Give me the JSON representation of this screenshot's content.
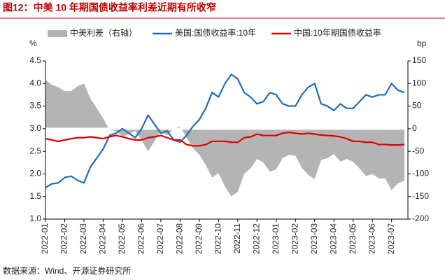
{
  "chart_data": {
    "type": "line",
    "title": "图12：中美 10 年期国债收益率利差近期有所收窄",
    "source": "数据来源：Wind、开源证券研究所",
    "y_label": "%",
    "y2_label": "bp",
    "categories": [
      "2022-01",
      null,
      null,
      "2022-02",
      null,
      null,
      "2022-03",
      null,
      null,
      "2022-04",
      null,
      null,
      "2022-05",
      null,
      null,
      "2022-06",
      null,
      null,
      "2022-07",
      null,
      null,
      "2022-08",
      null,
      null,
      "2022-09",
      null,
      null,
      "2022-10",
      null,
      null,
      "2022-11",
      null,
      null,
      "2022-12",
      null,
      null,
      "2023-01",
      null,
      null,
      "2023-02",
      null,
      null,
      "2023-03",
      null,
      null,
      "2023-04",
      null,
      null,
      "2023-05",
      null,
      null,
      "2023-06",
      null,
      null,
      "2023-07",
      null,
      null
    ],
    "series": [
      {
        "name": "中美利差（右轴）",
        "type": "area",
        "axis": "y2",
        "color": "#b4b4b4",
        "values": [
          108,
          97,
          92,
          83,
          83,
          94,
          100,
          67,
          45,
          23,
          -3,
          -5,
          -18,
          -12,
          -5,
          -25,
          -50,
          -28,
          -5,
          -15,
          0,
          5,
          -20,
          -43,
          -58,
          -80,
          -108,
          -98,
          -128,
          -150,
          -140,
          -100,
          -88,
          -67,
          -75,
          -95,
          -90,
          -65,
          -58,
          -60,
          -87,
          -102,
          -112,
          -69,
          -65,
          -56,
          -73,
          -67,
          -73,
          -88,
          -105,
          -100,
          -110,
          -110,
          -136,
          -121,
          -115
        ]
      },
      {
        "name": "美国:国债收益率:10年",
        "type": "line",
        "color": "#1f6db5",
        "values": [
          1.7,
          1.78,
          1.8,
          1.92,
          1.95,
          1.86,
          1.8,
          2.15,
          2.35,
          2.55,
          2.85,
          2.9,
          3.0,
          2.9,
          2.8,
          3.0,
          3.3,
          3.1,
          2.9,
          2.95,
          2.75,
          2.7,
          2.85,
          3.05,
          3.2,
          3.45,
          3.8,
          3.7,
          4.0,
          4.2,
          4.1,
          3.8,
          3.7,
          3.55,
          3.6,
          3.8,
          3.75,
          3.55,
          3.5,
          3.5,
          3.75,
          3.92,
          4.0,
          3.55,
          3.5,
          3.4,
          3.55,
          3.45,
          3.45,
          3.6,
          3.75,
          3.7,
          3.75,
          3.75,
          4.0,
          3.85,
          3.8
        ]
      },
      {
        "name": "中国:10年期国债收益率",
        "type": "line",
        "color": "#e00000",
        "values": [
          2.78,
          2.75,
          2.72,
          2.75,
          2.78,
          2.8,
          2.8,
          2.82,
          2.8,
          2.78,
          2.82,
          2.85,
          2.82,
          2.78,
          2.75,
          2.75,
          2.8,
          2.82,
          2.85,
          2.8,
          2.75,
          2.75,
          2.65,
          2.62,
          2.62,
          2.65,
          2.72,
          2.72,
          2.72,
          2.7,
          2.7,
          2.8,
          2.82,
          2.88,
          2.85,
          2.85,
          2.85,
          2.9,
          2.92,
          2.9,
          2.88,
          2.9,
          2.88,
          2.86,
          2.85,
          2.84,
          2.82,
          2.78,
          2.72,
          2.72,
          2.7,
          2.7,
          2.65,
          2.65,
          2.64,
          2.64,
          2.65
        ]
      }
    ],
    "ylim": [
      1.0,
      4.5
    ],
    "yticks": [
      {
        "value": 1.0,
        "label": "1.0"
      },
      {
        "value": 1.5,
        "label": "1.5"
      },
      {
        "value": 2.0,
        "label": "2.0"
      },
      {
        "value": 2.5,
        "label": "2.5"
      },
      {
        "value": 3.0,
        "label": "3.0"
      },
      {
        "value": 3.5,
        "label": "3.5"
      },
      {
        "value": 4.0,
        "label": "4.0"
      },
      {
        "value": 4.5,
        "label": "4.5"
      }
    ],
    "y2lim": [
      -200,
      150
    ],
    "y2ticks": [
      -200,
      -150,
      -100,
      -50,
      0,
      50,
      100,
      150
    ],
    "legend": "top"
  }
}
